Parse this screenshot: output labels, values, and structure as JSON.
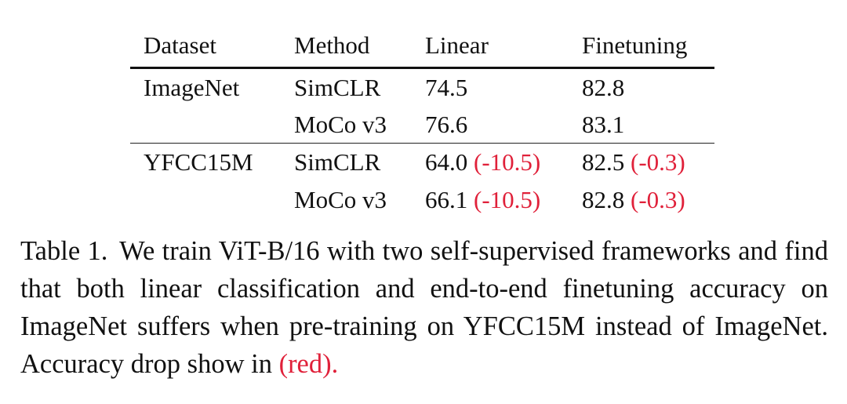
{
  "table": {
    "headers": {
      "dataset": "Dataset",
      "method": "Method",
      "linear": "Linear",
      "finetuning": "Finetuning"
    },
    "rows": [
      {
        "dataset": "ImageNet",
        "method": "SimCLR",
        "linear": "74.5",
        "linear_drop": "",
        "finetuning": "82.8",
        "finetuning_drop": ""
      },
      {
        "dataset": "",
        "method": "MoCo v3",
        "linear": "76.6",
        "linear_drop": "",
        "finetuning": "83.1",
        "finetuning_drop": ""
      },
      {
        "dataset": "YFCC15M",
        "method": "SimCLR",
        "linear": "64.0",
        "linear_drop": "(-10.5)",
        "finetuning": "82.5",
        "finetuning_drop": "(-0.3)"
      },
      {
        "dataset": "",
        "method": "MoCo v3",
        "linear": "66.1",
        "linear_drop": "(-10.5)",
        "finetuning": "82.8",
        "finetuning_drop": "(-0.3)"
      }
    ]
  },
  "caption": {
    "label": "Table 1.",
    "text": "We train ViT-B/16 with two self-supervised frameworks and find that both linear classification and end-to-end finetuning accuracy on ImageNet suffers when pre-training on YFCC15M instead of ImageNet. Accuracy drop show in",
    "highlight": "(red)."
  },
  "colors": {
    "drop": "#e0213a",
    "text": "#111111"
  }
}
